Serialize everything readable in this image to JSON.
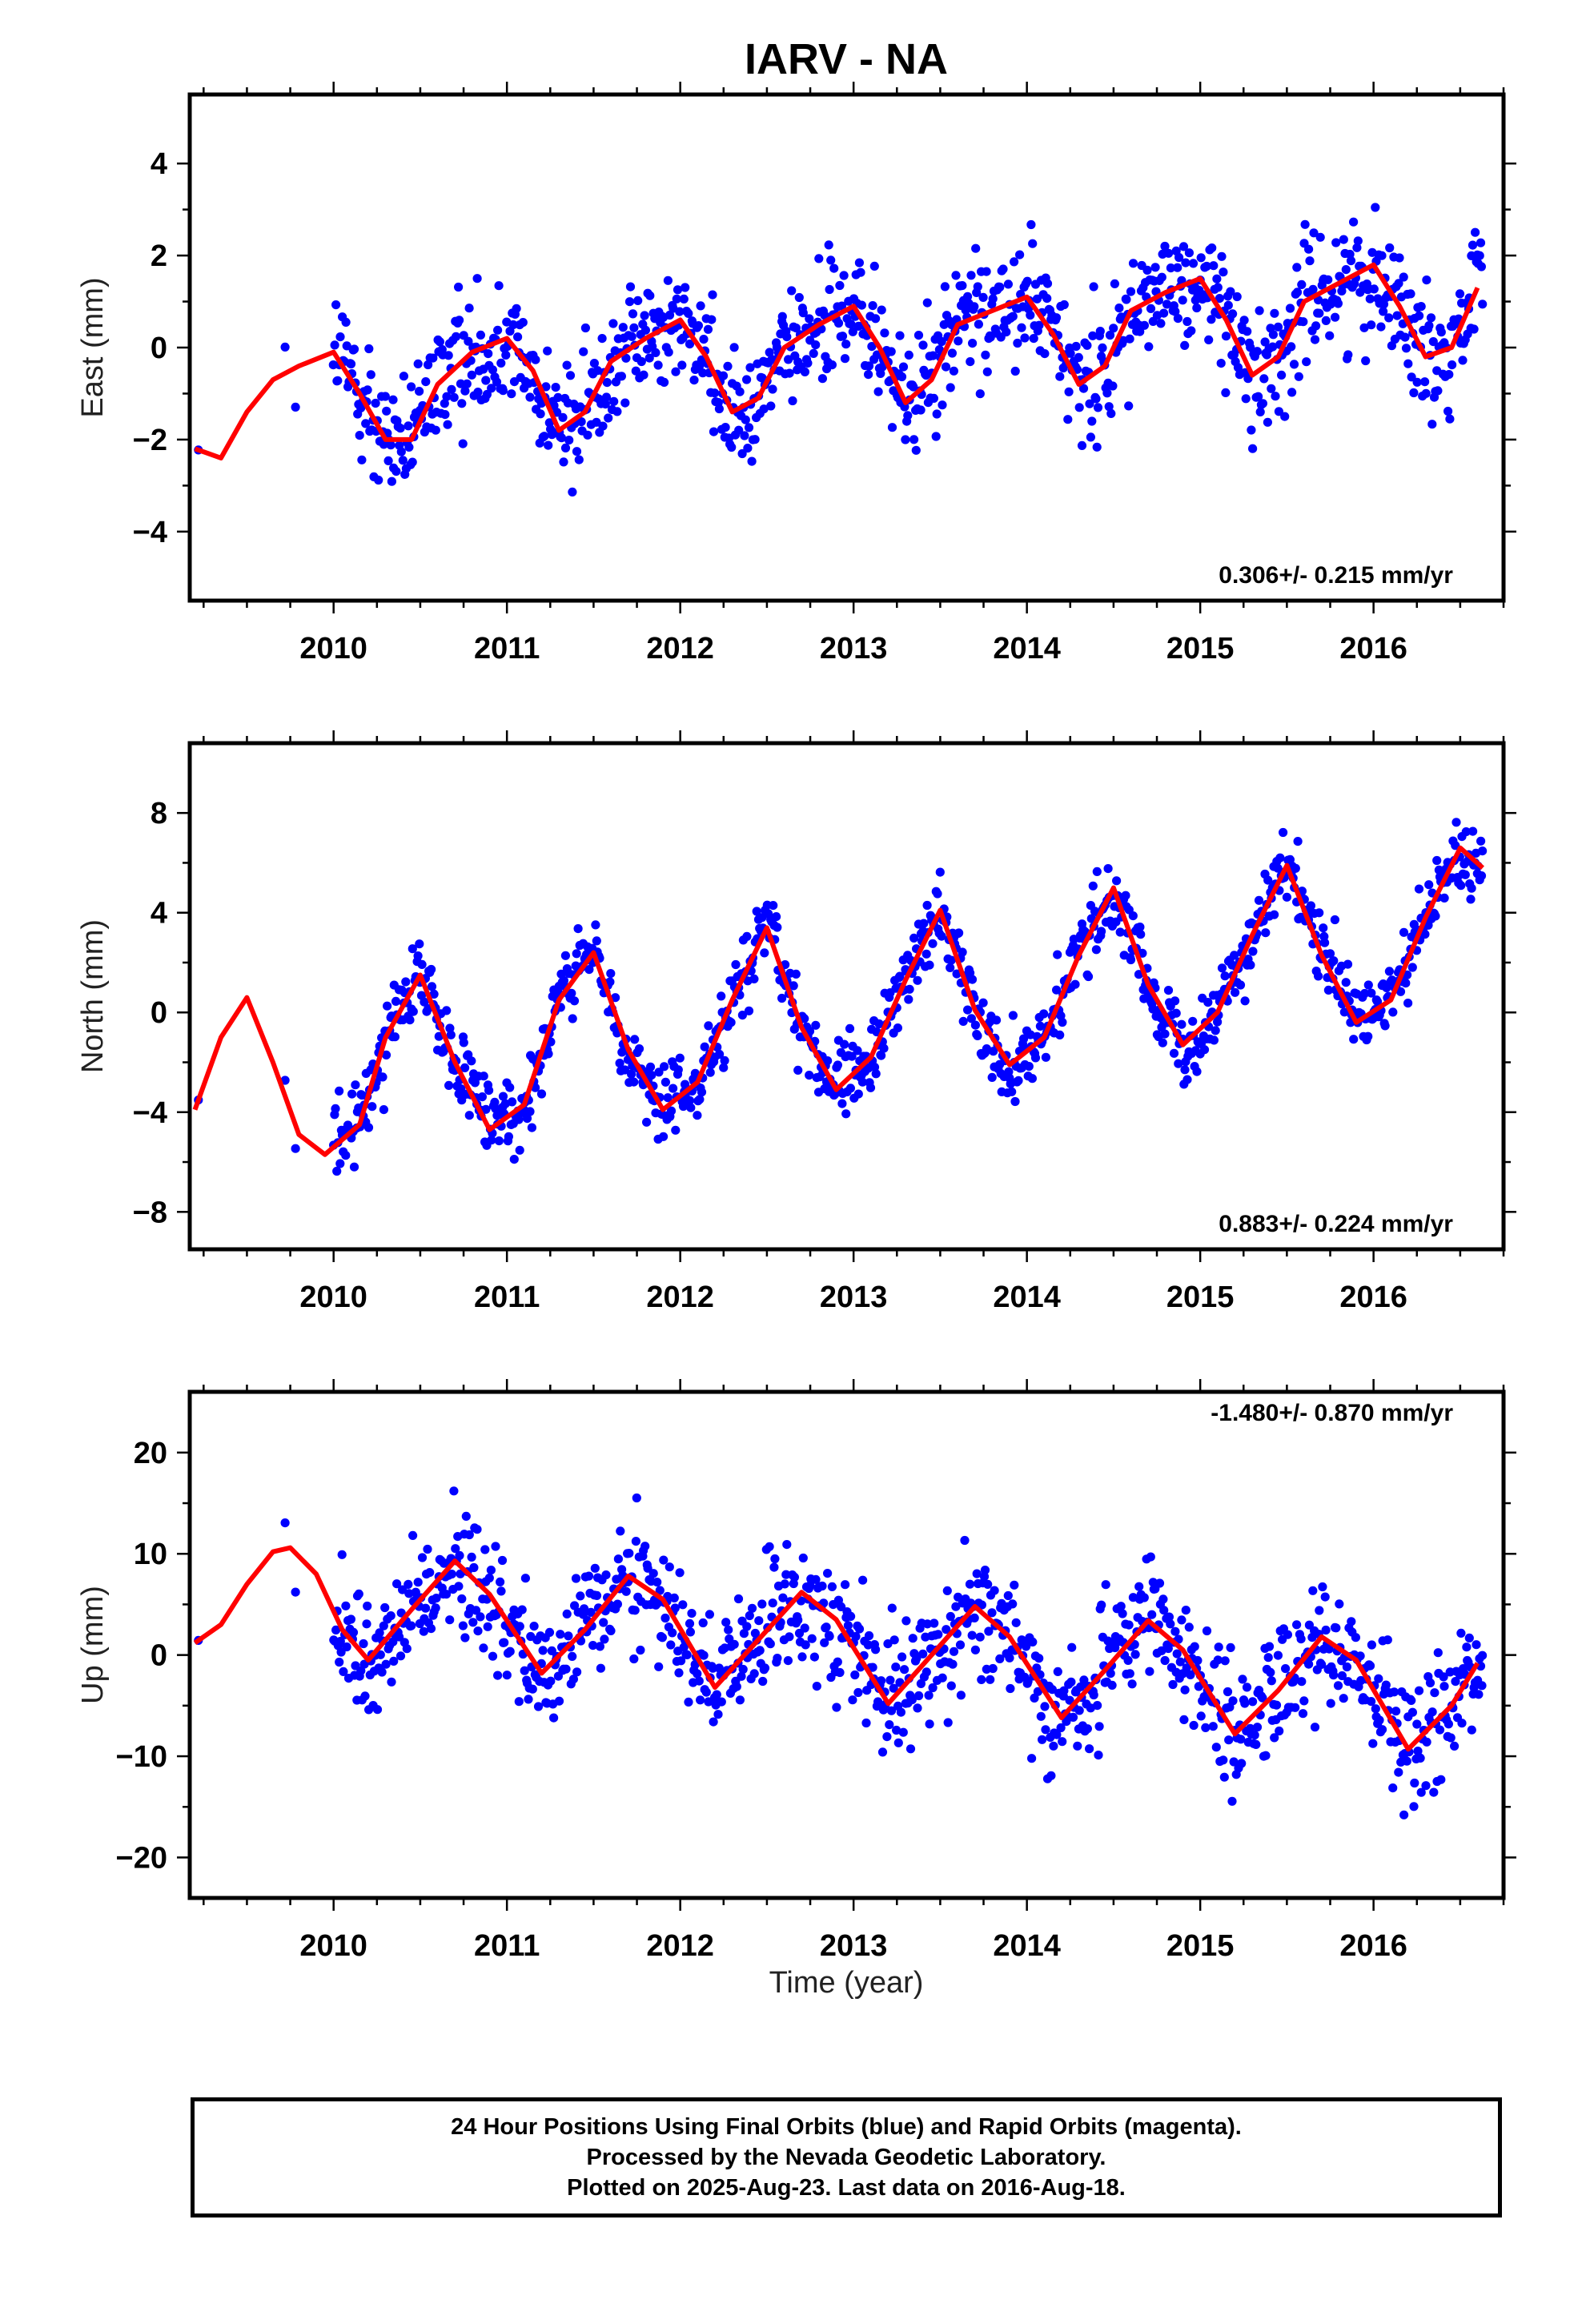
{
  "title": "IARV - NA",
  "xlabel": "Time (year)",
  "footer": {
    "line1": "24 Hour Positions Using Final Orbits (blue) and Rapid Orbits (magenta).",
    "line2": "Processed by the Nevada Geodetic Laboratory.",
    "line3": "Plotted on 2025-Aug-23. Last data on 2016-Aug-18."
  },
  "colors": {
    "points": "#0000ff",
    "model": "#ff0000",
    "rapid_points": "#ff00ff"
  },
  "chart_data": [
    {
      "type": "scatter",
      "ylabel": "East (mm)",
      "rate_label": "0.306+/- 0.215 mm/yr",
      "x_ticks": [
        "2010",
        "2011",
        "2012",
        "2013",
        "2014",
        "2015",
        "2016"
      ],
      "y_ticks": [
        "−4",
        "−2",
        "0",
        "2",
        "4"
      ],
      "xlim": [
        2009.17,
        2016.75
      ],
      "ylim": [
        -5.5,
        5.5
      ],
      "data_start": 2010.0,
      "data_end": 2016.63,
      "series": [
        {
          "type": "line",
          "x": [
            2009.2,
            2009.35,
            2009.5,
            2009.65,
            2009.8,
            2010.0,
            2010.15,
            2010.3,
            2010.45,
            2010.6,
            2010.8,
            2011.0,
            2011.15,
            2011.3,
            2011.45,
            2011.6,
            2011.8,
            2012.0,
            2012.15,
            2012.3,
            2012.45,
            2012.6,
            2012.8,
            2013.0,
            2013.15,
            2013.3,
            2013.45,
            2013.6,
            2013.8,
            2014.0,
            2014.15,
            2014.3,
            2014.45,
            2014.6,
            2014.8,
            2015.0,
            2015.15,
            2015.3,
            2015.45,
            2015.6,
            2015.8,
            2016.0,
            2016.15,
            2016.3,
            2016.45,
            2016.6
          ],
          "y": [
            -2.2,
            -2.4,
            -1.4,
            -0.7,
            -0.4,
            -0.1,
            -1.0,
            -2.0,
            -2.0,
            -0.8,
            -0.1,
            0.2,
            -0.5,
            -1.8,
            -1.4,
            -0.3,
            0.2,
            0.6,
            -0.2,
            -1.4,
            -1.1,
            0.0,
            0.5,
            0.9,
            0.0,
            -1.2,
            -0.7,
            0.5,
            0.8,
            1.1,
            0.3,
            -0.8,
            -0.4,
            0.8,
            1.2,
            1.5,
            0.6,
            -0.6,
            -0.2,
            1.0,
            1.4,
            1.8,
            0.9,
            -0.2,
            0.0,
            1.3
          ]
        }
      ]
    },
    {
      "type": "scatter",
      "ylabel": "North (mm)",
      "rate_label": "0.883+/- 0.224 mm/yr",
      "x_ticks": [
        "2010",
        "2011",
        "2012",
        "2013",
        "2014",
        "2015",
        "2016"
      ],
      "y_ticks": [
        "−8",
        "−4",
        "0",
        "4",
        "8"
      ],
      "xlim": [
        2009.17,
        2016.75
      ],
      "ylim": [
        -9.5,
        10.8
      ],
      "data_start": 2010.0,
      "data_end": 2016.63,
      "series": [
        {
          "type": "line",
          "x": [
            2009.2,
            2009.35,
            2009.5,
            2009.65,
            2009.8,
            2009.95,
            2010.15,
            2010.3,
            2010.5,
            2010.7,
            2010.9,
            2011.1,
            2011.3,
            2011.5,
            2011.7,
            2011.9,
            2012.1,
            2012.3,
            2012.5,
            2012.7,
            2012.9,
            2013.1,
            2013.3,
            2013.5,
            2013.7,
            2013.9,
            2014.1,
            2014.3,
            2014.5,
            2014.7,
            2014.9,
            2015.1,
            2015.3,
            2015.5,
            2015.7,
            2015.9,
            2016.1,
            2016.3,
            2016.5,
            2016.63
          ],
          "y": [
            -3.9,
            -1.0,
            0.6,
            -2.0,
            -4.9,
            -5.7,
            -4.5,
            -1.0,
            1.5,
            -2.0,
            -4.7,
            -3.7,
            0.5,
            2.4,
            -1.5,
            -3.9,
            -2.8,
            0.5,
            3.4,
            -0.6,
            -3.1,
            -1.8,
            1.3,
            4.1,
            0.1,
            -2.1,
            -1.0,
            2.3,
            5.0,
            1.1,
            -1.3,
            0.0,
            3.1,
            5.9,
            2.3,
            -0.4,
            0.5,
            3.8,
            6.6,
            5.8
          ]
        }
      ]
    },
    {
      "type": "scatter",
      "ylabel": "Up (mm)",
      "rate_label": "-1.480+/- 0.870 mm/yr",
      "x_ticks": [
        "2010",
        "2011",
        "2012",
        "2013",
        "2014",
        "2015",
        "2016"
      ],
      "y_ticks": [
        "−20",
        "−10",
        "0",
        "10",
        "20"
      ],
      "xlim": [
        2009.17,
        2016.75
      ],
      "ylim": [
        -24,
        26
      ],
      "data_start": 2010.0,
      "data_end": 2016.63,
      "series": [
        {
          "type": "line",
          "x": [
            2009.2,
            2009.35,
            2009.5,
            2009.65,
            2009.75,
            2009.9,
            2010.05,
            2010.2,
            2010.45,
            2010.7,
            2010.9,
            2011.2,
            2011.45,
            2011.7,
            2011.9,
            2012.2,
            2012.45,
            2012.7,
            2012.9,
            2013.2,
            2013.45,
            2013.7,
            2013.9,
            2014.2,
            2014.45,
            2014.7,
            2014.9,
            2015.2,
            2015.45,
            2015.7,
            2015.9,
            2016.2,
            2016.45,
            2016.6
          ],
          "y": [
            1.2,
            3.0,
            7.0,
            10.2,
            10.6,
            8.0,
            2.5,
            -0.5,
            4.5,
            9.3,
            6.0,
            -1.8,
            2.5,
            7.8,
            5.5,
            -3.2,
            1.5,
            6.2,
            3.5,
            -4.8,
            0.0,
            4.8,
            1.8,
            -6.2,
            -1.5,
            3.4,
            0.5,
            -7.8,
            -3.5,
            1.8,
            -0.5,
            -9.3,
            -5.0,
            -0.8
          ]
        }
      ]
    }
  ]
}
